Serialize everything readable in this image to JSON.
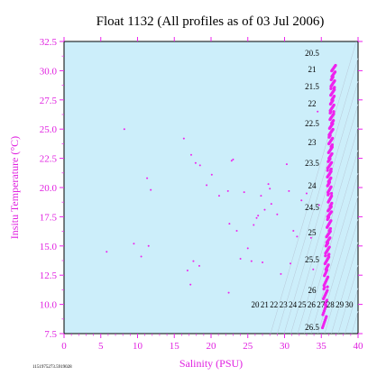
{
  "chart_data": {
    "type": "scatter",
    "title": "Float 1132  (All profiles as of 03 Jul 2006)",
    "xlabel": "Salinity (PSU)",
    "ylabel": "Insitu Temperature (°C)",
    "xlim": [
      0,
      40
    ],
    "ylim": [
      7.5,
      32.5
    ],
    "xticks": [
      "0",
      "5",
      "10",
      "15",
      "20",
      "25",
      "30",
      "35",
      "40"
    ],
    "yticks": [
      "7.5",
      "10.0",
      "12.5",
      "15.0",
      "17.5",
      "20.0",
      "22.5",
      "25.0",
      "27.5",
      "30.0",
      "32.5"
    ],
    "grid": false,
    "background_color": "#cceefa",
    "mark_color": "#ee22ee",
    "footnote": "1151975273.5919028",
    "density_labels_right": [
      "20.5",
      "21",
      "21.5",
      "22",
      "22.5",
      "23",
      "23.5",
      "24",
      "24.5",
      "25",
      "25.5",
      "26",
      "26.5"
    ],
    "density_labels_bottom": [
      "20",
      "21",
      "22",
      "23",
      "24",
      "25",
      "26",
      "27",
      "28",
      "29",
      "30"
    ],
    "outliers": [
      {
        "x": 5.8,
        "y": 14.5
      },
      {
        "x": 8.2,
        "y": 25.0
      },
      {
        "x": 9.5,
        "y": 15.2
      },
      {
        "x": 10.5,
        "y": 14.1
      },
      {
        "x": 11.3,
        "y": 20.8
      },
      {
        "x": 11.5,
        "y": 15.0
      },
      {
        "x": 11.8,
        "y": 19.8
      },
      {
        "x": 16.3,
        "y": 24.2
      },
      {
        "x": 16.8,
        "y": 12.9
      },
      {
        "x": 17.2,
        "y": 11.7
      },
      {
        "x": 17.3,
        "y": 22.8
      },
      {
        "x": 17.6,
        "y": 13.7
      },
      {
        "x": 17.9,
        "y": 22.1
      },
      {
        "x": 18.4,
        "y": 13.3
      },
      {
        "x": 18.5,
        "y": 21.9
      },
      {
        "x": 19.4,
        "y": 20.2
      },
      {
        "x": 20.1,
        "y": 21.1
      },
      {
        "x": 21.1,
        "y": 19.3
      },
      {
        "x": 22.3,
        "y": 19.7
      },
      {
        "x": 22.4,
        "y": 11.0
      },
      {
        "x": 22.5,
        "y": 16.9
      },
      {
        "x": 22.8,
        "y": 22.3
      },
      {
        "x": 23.0,
        "y": 22.4
      },
      {
        "x": 23.5,
        "y": 16.3
      },
      {
        "x": 24.0,
        "y": 13.9
      },
      {
        "x": 24.5,
        "y": 19.6
      },
      {
        "x": 25.0,
        "y": 14.8
      },
      {
        "x": 25.5,
        "y": 13.7
      },
      {
        "x": 25.8,
        "y": 16.8
      },
      {
        "x": 26.2,
        "y": 17.4
      },
      {
        "x": 26.4,
        "y": 17.6
      },
      {
        "x": 26.8,
        "y": 19.3
      },
      {
        "x": 27.0,
        "y": 13.6
      },
      {
        "x": 27.3,
        "y": 18.1
      },
      {
        "x": 27.8,
        "y": 20.3
      },
      {
        "x": 28.0,
        "y": 19.9
      },
      {
        "x": 28.2,
        "y": 18.6
      },
      {
        "x": 29.0,
        "y": 17.7
      },
      {
        "x": 29.5,
        "y": 12.6
      },
      {
        "x": 30.3,
        "y": 22.0
      },
      {
        "x": 30.6,
        "y": 19.7
      },
      {
        "x": 30.8,
        "y": 13.5
      },
      {
        "x": 31.2,
        "y": 16.3
      },
      {
        "x": 31.7,
        "y": 15.8
      },
      {
        "x": 32.3,
        "y": 18.9
      },
      {
        "x": 33.0,
        "y": 19.5
      },
      {
        "x": 33.6,
        "y": 15.7
      },
      {
        "x": 33.9,
        "y": 13.0
      },
      {
        "x": 34.5,
        "y": 26.5
      },
      {
        "x": 34.7,
        "y": 18.5
      }
    ],
    "main_profile": [
      {
        "x": 35.4,
        "y": 8.0
      },
      {
        "x": 35.5,
        "y": 10.0
      },
      {
        "x": 35.6,
        "y": 11.5
      },
      {
        "x": 35.7,
        "y": 13.0
      },
      {
        "x": 35.8,
        "y": 14.2
      },
      {
        "x": 35.9,
        "y": 15.3
      },
      {
        "x": 36.0,
        "y": 16.3
      },
      {
        "x": 36.1,
        "y": 17.5
      },
      {
        "x": 36.2,
        "y": 18.4
      },
      {
        "x": 36.15,
        "y": 19.5
      },
      {
        "x": 36.05,
        "y": 20.5
      },
      {
        "x": 36.1,
        "y": 21.5
      },
      {
        "x": 36.2,
        "y": 22.5
      },
      {
        "x": 36.25,
        "y": 23.5
      },
      {
        "x": 36.3,
        "y": 24.5
      },
      {
        "x": 36.4,
        "y": 25.5
      },
      {
        "x": 36.45,
        "y": 26.5
      },
      {
        "x": 36.5,
        "y": 27.5
      },
      {
        "x": 36.55,
        "y": 28.5
      },
      {
        "x": 36.6,
        "y": 29.5
      },
      {
        "x": 36.7,
        "y": 30.5
      }
    ]
  }
}
